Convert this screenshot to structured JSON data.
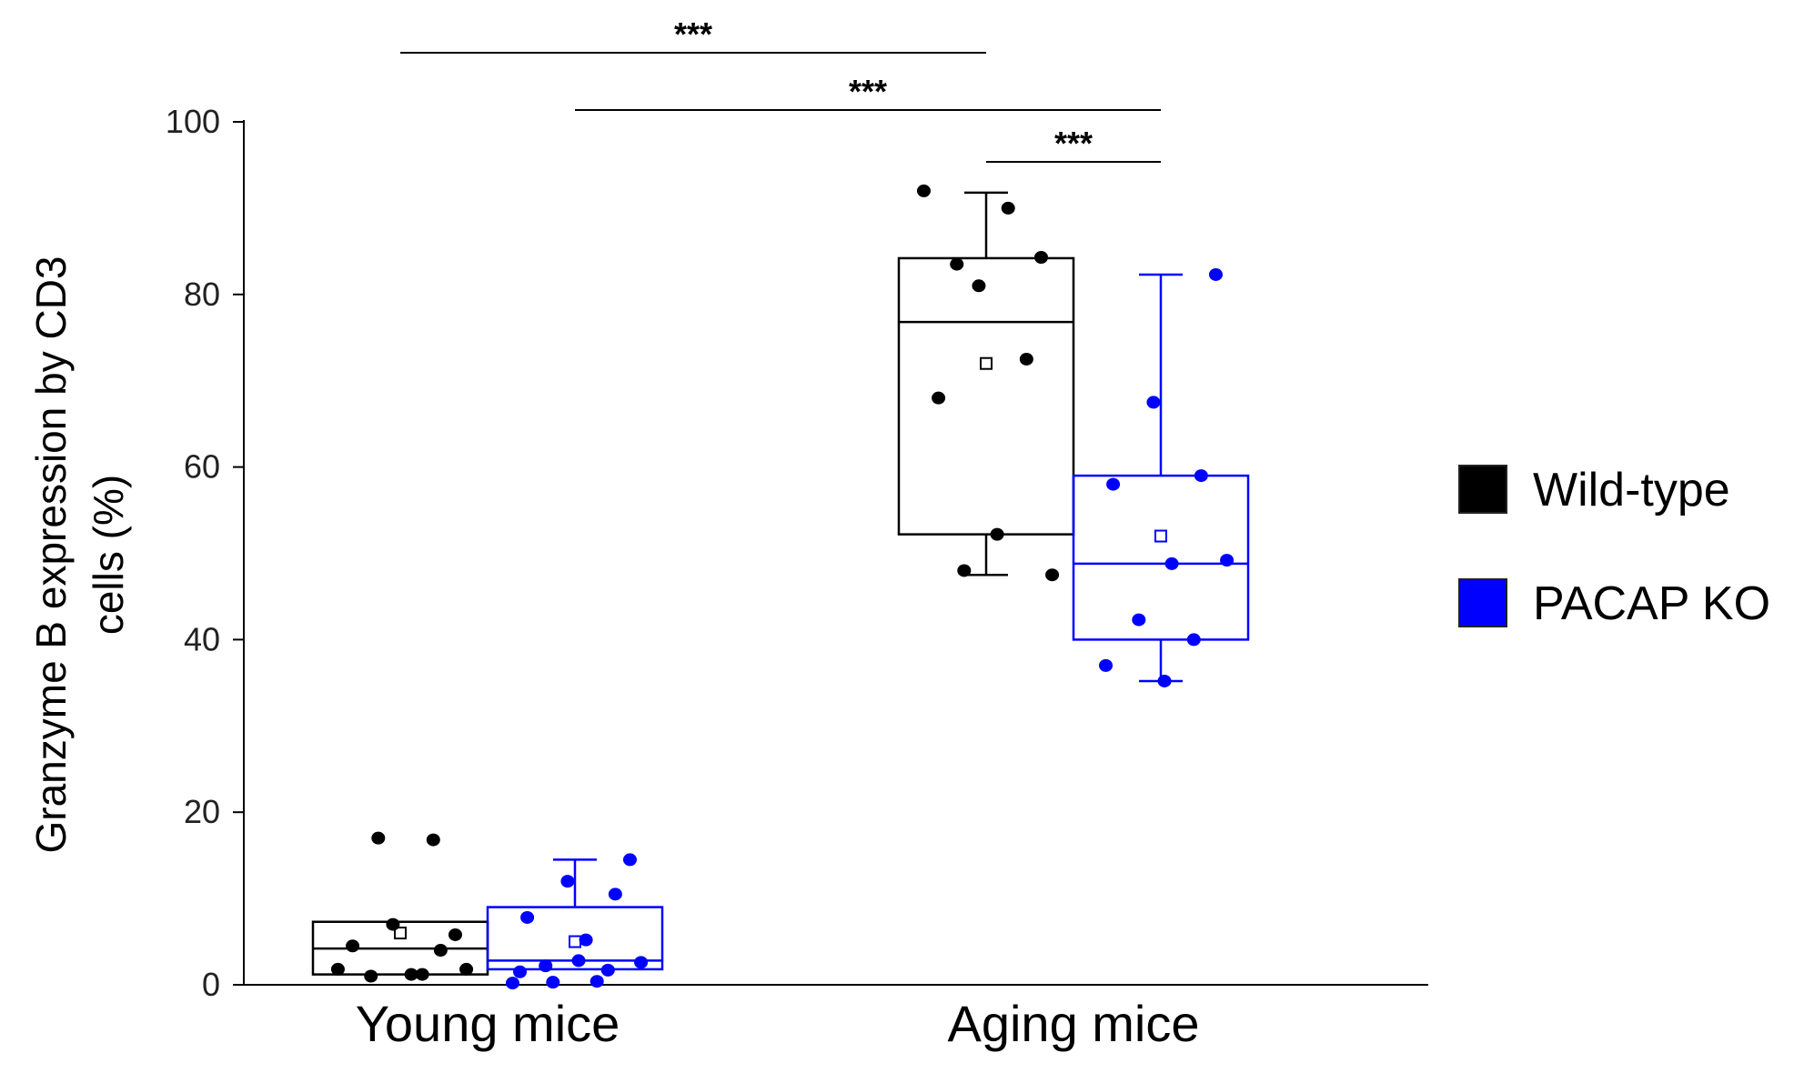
{
  "chart_data": {
    "type": "box",
    "ylabel_line1": "Granzyme  B expression by CD3",
    "ylabel_line2": "cells (%)",
    "ylim": [
      0,
      100
    ],
    "yticks": [
      0,
      20,
      40,
      60,
      80,
      100
    ],
    "categories": [
      "Young mice",
      "Aging mice"
    ],
    "series": [
      {
        "name": "Wild-type",
        "color": "#000000",
        "boxes": [
          {
            "category": "Young mice",
            "q1": 1.2,
            "median": 4.2,
            "q3": 7.3,
            "whisker_low": 1.2,
            "whisker_high": 7.3,
            "mean": 6.0,
            "points": [
              1.8,
              1.2,
              1.0,
              5.8,
              7.0,
              4.0,
              4.5,
              1.2,
              1.8,
              17.0,
              16.8
            ]
          },
          {
            "category": "Aging mice",
            "q1": 52.2,
            "median": 76.8,
            "q3": 84.2,
            "whisker_low": 47.5,
            "whisker_high": 91.8,
            "mean": 72.0,
            "points": [
              92.0,
              90.0,
              83.5,
              84.3,
              81.0,
              72.5,
              68.0,
              52.2,
              47.5,
              48.0
            ]
          }
        ]
      },
      {
        "name": "PACAP KO",
        "color": "#0000ff",
        "boxes": [
          {
            "category": "Young mice",
            "q1": 1.8,
            "median": 2.8,
            "q3": 9.0,
            "whisker_low": 1.8,
            "whisker_high": 14.5,
            "mean": 5.0,
            "points": [
              14.5,
              12.0,
              10.5,
              7.8,
              5.2,
              2.6,
              0.3,
              1.7,
              1.5,
              2.8,
              0.2,
              0.4,
              2.2
            ]
          },
          {
            "category": "Aging mice",
            "q1": 40.0,
            "median": 48.8,
            "q3": 59.0,
            "whisker_low": 35.2,
            "whisker_high": 82.3,
            "mean": 52.0,
            "points": [
              82.3,
              67.5,
              59.0,
              58.0,
              48.8,
              49.2,
              42.3,
              40.0,
              37.0,
              35.2
            ]
          }
        ]
      }
    ],
    "significance": [
      {
        "label": "***",
        "from": "Young mice / Wild-type",
        "to": "Aging mice / Wild-type"
      },
      {
        "label": "***",
        "from": "Young mice / PACAP KO",
        "to": "Aging mice / PACAP KO"
      },
      {
        "label": "***",
        "from": "Aging mice / Wild-type",
        "to": "Aging mice / PACAP KO"
      }
    ],
    "legend": [
      {
        "label": "Wild-type",
        "color": "#000000"
      },
      {
        "label": "PACAP KO",
        "color": "#0000ff"
      }
    ]
  }
}
